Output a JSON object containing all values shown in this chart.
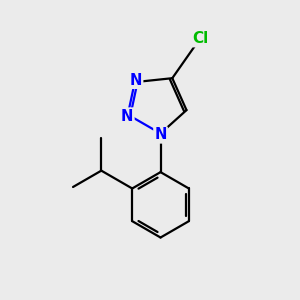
{
  "background_color": "#ebebeb",
  "bond_color": "#000000",
  "nitrogen_color": "#0000ff",
  "chlorine_color": "#00bb00",
  "line_width": 1.6,
  "font_size_atom": 10.5,
  "fig_width": 3.0,
  "fig_height": 3.0,
  "dpi": 100,
  "xlim": [
    0,
    10
  ],
  "ylim": [
    0,
    10
  ]
}
